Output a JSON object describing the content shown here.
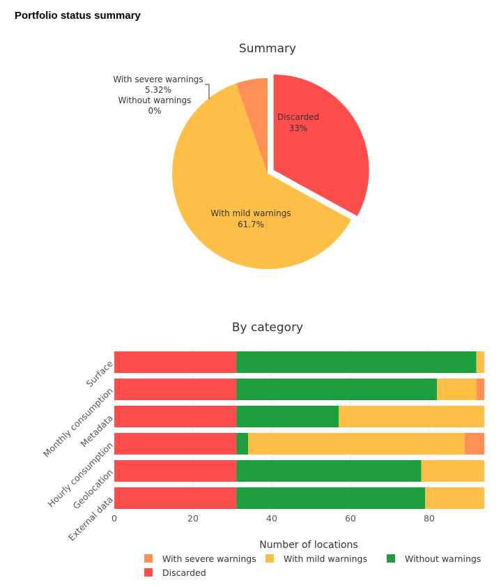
{
  "header": {
    "title": "Portfolio status summary"
  },
  "colors": {
    "severe": "#FF9055",
    "mild": "#FFBF47",
    "without": "#1E9E3C",
    "discarded": "#FF4C4C"
  },
  "chart_data": [
    {
      "type": "pie",
      "title": "Summary",
      "slices": [
        {
          "label": "Discarded",
          "pct_text": "33%",
          "value": 33.0,
          "color_key": "discarded",
          "pulled": true
        },
        {
          "label": "With mild warnings",
          "pct_text": "61.7%",
          "value": 61.7,
          "color_key": "mild"
        },
        {
          "label": "With severe warnings",
          "pct_text": "5.32%",
          "value": 5.32,
          "color_key": "severe"
        },
        {
          "label": "Without warnings",
          "pct_text": "0%",
          "value": 0,
          "color_key": "without"
        }
      ]
    },
    {
      "type": "bar",
      "orientation": "horizontal",
      "stacked": true,
      "title": "By category",
      "xlabel": "Number of locations",
      "xlim": [
        0,
        94
      ],
      "xticks": [
        0,
        20,
        40,
        60,
        80
      ],
      "categories": [
        "Surface",
        "Monthly consumption",
        "Metadata",
        "Hourly consumption",
        "Geolocation",
        "External data"
      ],
      "series": [
        {
          "name": "Discarded",
          "color_key": "discarded",
          "values": [
            31,
            31,
            31,
            31,
            31,
            31
          ]
        },
        {
          "name": "Without warnings",
          "color_key": "without",
          "values": [
            61,
            51,
            26,
            3,
            47,
            48
          ]
        },
        {
          "name": "With mild warnings",
          "color_key": "mild",
          "values": [
            2,
            10,
            37,
            55,
            16,
            15
          ]
        },
        {
          "name": "With severe warnings",
          "color_key": "severe",
          "values": [
            0,
            2,
            0,
            5,
            0,
            0
          ]
        }
      ],
      "legend": {
        "placement": "bottom",
        "entries": [
          {
            "name": "With severe warnings",
            "color_key": "severe"
          },
          {
            "name": "With mild warnings",
            "color_key": "mild"
          },
          {
            "name": "Without warnings",
            "color_key": "without"
          },
          {
            "name": "Discarded",
            "color_key": "discarded"
          }
        ]
      }
    }
  ]
}
